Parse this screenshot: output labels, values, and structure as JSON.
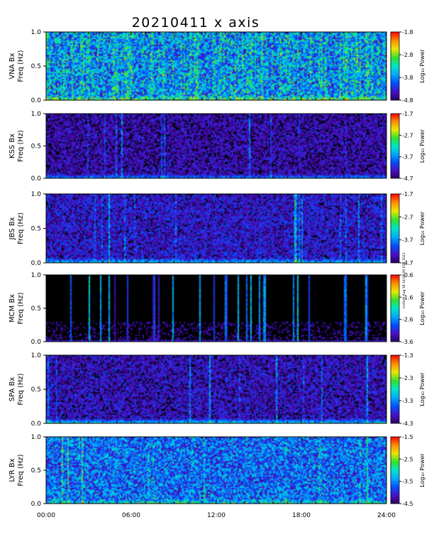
{
  "figure": {
    "title": "20210411  x axis",
    "timestamp": "mchkm Aug 18 14:00:09 EDT 2021"
  },
  "chart_data": [
    {
      "type": "heatmap",
      "station": "VNA",
      "ylabel_line1": "VNA Bx",
      "ylabel_line2": "Freq (Hz)",
      "ylim": [
        0,
        1
      ],
      "yticks": [
        "1.0",
        "0.5",
        "0.0"
      ],
      "colorbar": {
        "label": "Log₁₀ Power",
        "range": [
          -4.8,
          -1.8
        ],
        "ticks": [
          "-1.8",
          "-2.8",
          "-3.8",
          "-4.8"
        ]
      }
    },
    {
      "type": "heatmap",
      "station": "KSS",
      "ylabel_line1": "KSS Bx",
      "ylabel_line2": "Freq (Hz)",
      "ylim": [
        0,
        1
      ],
      "yticks": [
        "1.0",
        "0.5",
        "0.0"
      ],
      "colorbar": {
        "label": "Log₁₀ Power",
        "range": [
          -4.7,
          -1.7
        ],
        "ticks": [
          "-1.7",
          "-2.7",
          "-3.7",
          "-4.7"
        ]
      }
    },
    {
      "type": "heatmap",
      "station": "JBS",
      "ylabel_line1": "JBS Bx",
      "ylabel_line2": "Freq (Hz)",
      "ylim": [
        0,
        1
      ],
      "yticks": [
        "1.0",
        "0.5",
        "0.0"
      ],
      "colorbar": {
        "label": "Log₁₀ Power",
        "range": [
          -4.7,
          -1.7
        ],
        "ticks": [
          "-1.7",
          "-2.7",
          "-3.7",
          "-4.7"
        ]
      }
    },
    {
      "type": "heatmap",
      "station": "MCM",
      "ylabel_line1": "MCM Bx",
      "ylabel_line2": "Freq (Hz)",
      "ylim": [
        0,
        1
      ],
      "yticks": [
        "1.0",
        "0.5",
        "0.0"
      ],
      "colorbar": {
        "label": "Log₁₀ Power",
        "range": [
          -3.6,
          -0.6
        ],
        "ticks": [
          "-0.6",
          "-1.6",
          "-2.6",
          "-3.6"
        ]
      }
    },
    {
      "type": "heatmap",
      "station": "SPA",
      "ylabel_line1": "SPA Bx",
      "ylabel_line2": "Freq (Hz)",
      "ylim": [
        0,
        1
      ],
      "yticks": [
        "1.0",
        "0.5",
        "0.0"
      ],
      "colorbar": {
        "label": "Log₁₀ Power",
        "range": [
          -4.3,
          -1.3
        ],
        "ticks": [
          "-1.3",
          "-2.3",
          "-3.3",
          "-4.3"
        ]
      }
    },
    {
      "type": "heatmap",
      "station": "LYR",
      "ylabel_line1": "LYR Bx",
      "ylabel_line2": "Freq (Hz)",
      "ylim": [
        0,
        1
      ],
      "yticks": [
        "1.0",
        "0.5",
        "0.0"
      ],
      "colorbar": {
        "label": "Log₁₀ Power",
        "range": [
          -4.5,
          -1.5
        ],
        "ticks": [
          "-1.5",
          "-2.5",
          "-3.5",
          "-4.5"
        ]
      }
    }
  ],
  "xaxis": {
    "range_hours": [
      0,
      24
    ],
    "ticks": [
      "00:00",
      "06:00",
      "12:00",
      "18:00",
      "24:00"
    ]
  },
  "colors": {
    "colormap": [
      "#2a0060",
      "#4a10c8",
      "#0050ff",
      "#00a8ff",
      "#00e6c8",
      "#30e030",
      "#e8e800",
      "#ff8800",
      "#ff0000"
    ]
  }
}
